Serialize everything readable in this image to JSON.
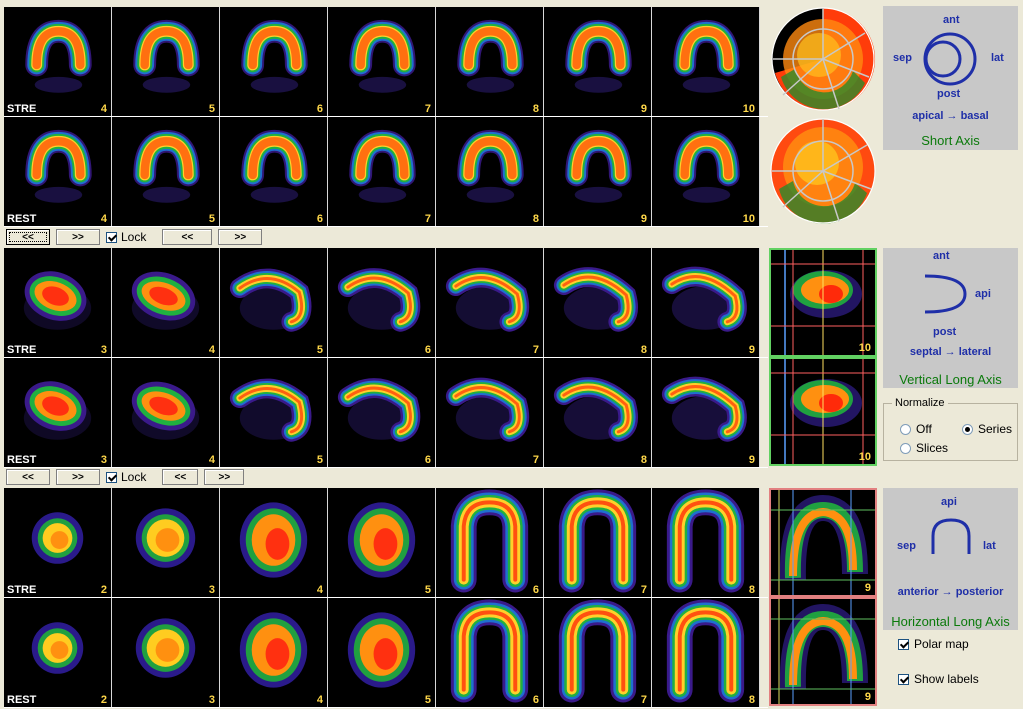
{
  "sections": [
    {
      "id": "short-axis",
      "rows": [
        {
          "label": "STRE",
          "slices": [
            "4",
            "5",
            "6",
            "7",
            "8",
            "9",
            "10"
          ]
        },
        {
          "label": "REST",
          "slices": [
            "4",
            "5",
            "6",
            "7",
            "8",
            "9",
            "10"
          ]
        }
      ],
      "extra_slice": "",
      "shape": "ring",
      "panel": {
        "top_label": "ant",
        "left_label": "sep",
        "right_label": "lat",
        "bottom_label": "post",
        "direction": "apical → basal",
        "title": "Short Axis"
      }
    },
    {
      "id": "vertical-long-axis",
      "rows": [
        {
          "label": "STRE",
          "slices": [
            "3",
            "4",
            "5",
            "6",
            "7",
            "8",
            "9"
          ],
          "extra": "10"
        },
        {
          "label": "REST",
          "slices": [
            "3",
            "4",
            "5",
            "6",
            "7",
            "8",
            "9"
          ],
          "extra": "10"
        }
      ],
      "shape": "crescent",
      "panel": {
        "top_label": "ant",
        "right_label": "api",
        "bottom_label": "post",
        "direction": "septal → lateral",
        "title": "Vertical Long Axis"
      }
    },
    {
      "id": "horizontal-long-axis",
      "rows": [
        {
          "label": "STRE",
          "slices": [
            "2",
            "3",
            "4",
            "5",
            "6",
            "7",
            "8"
          ],
          "extra": "9"
        },
        {
          "label": "REST",
          "slices": [
            "2",
            "3",
            "4",
            "5",
            "6",
            "7",
            "8"
          ],
          "extra": "9"
        }
      ],
      "shape": "horseshoe",
      "panel": {
        "top_label": "api",
        "left_label": "sep",
        "right_label": "lat",
        "direction": "anterior → posterior",
        "title": "Horizontal Long Axis"
      }
    }
  ],
  "toolbars": [
    {
      "prev": "<<",
      "next": ">>",
      "lock_label": "Lock",
      "lock_checked": true,
      "prev2": "<<",
      "next2": ">>"
    },
    {
      "prev": "<<",
      "next": ">>",
      "lock_label": "Lock",
      "lock_checked": true,
      "prev2": "<<",
      "next2": ">>"
    }
  ],
  "normalize": {
    "title": "Normalize",
    "options": [
      {
        "label": "Off",
        "selected": false
      },
      {
        "label": "Series",
        "selected": true
      },
      {
        "label": "Slices",
        "selected": false
      }
    ]
  },
  "checkboxes": {
    "polar_map": {
      "label": "Polar map",
      "checked": true
    },
    "show_labels": {
      "label": "Show labels",
      "checked": true
    }
  },
  "colors": {
    "label_yellow": "#ffd84a",
    "panel_text": "#1f2fa8",
    "panel_title": "#0b7a0b"
  }
}
